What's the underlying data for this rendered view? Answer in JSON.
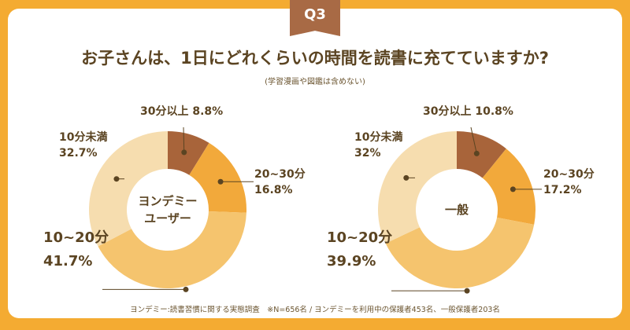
{
  "badge": "Q3",
  "title": "お子さんは、1日にどれくらいの時間を読書に充てていますか?",
  "subtitle": "(学習漫画や図鑑は含めない)",
  "footnote": "ヨンデミー:読書習慣に関する実態調査　※N=656名 / ヨンデミーを利用中の保護者453名、一般保護者203名",
  "colors": {
    "background": "#F4AB32",
    "badge": "#A86A45",
    "seg_30plus": "#A8643A",
    "seg_20_30": "#F2A93B",
    "seg_10_20": "#F5C46E",
    "seg_under10": "#F6DDAF"
  },
  "chart_data": [
    {
      "type": "pie",
      "variant": "donut",
      "center_label": [
        "ヨンデミー",
        "ユーザー"
      ],
      "categories": [
        "30分以上",
        "20~30分",
        "10~20分",
        "10分未満"
      ],
      "values": [
        8.8,
        16.8,
        41.7,
        32.7
      ],
      "labels": [
        "8.8%",
        "16.8%",
        "41.7%",
        "32.7%"
      ]
    },
    {
      "type": "pie",
      "variant": "donut",
      "center_label": [
        "一般"
      ],
      "categories": [
        "30分以上",
        "20~30分",
        "10~20分",
        "10分未満"
      ],
      "values": [
        10.8,
        17.2,
        39.9,
        32
      ],
      "labels": [
        "10.8%",
        "17.2%",
        "39.9%",
        "32%"
      ]
    }
  ]
}
